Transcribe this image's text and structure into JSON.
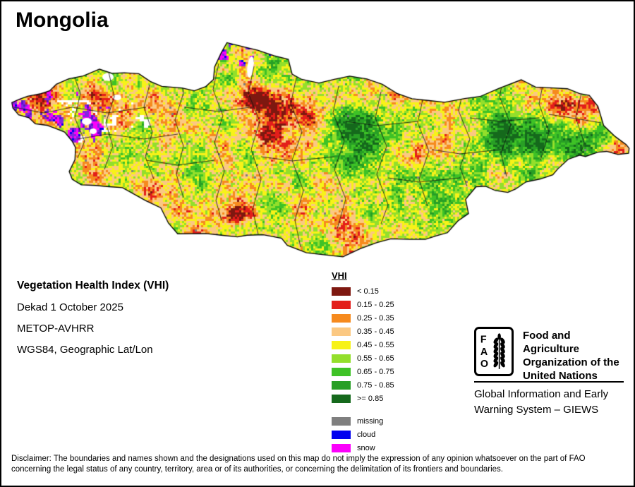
{
  "page": {
    "title": "Mongolia"
  },
  "info": {
    "heading": "Vegetation Health Index (VHI)",
    "dekad": "Dekad 1 October 2025",
    "sensor": "METOP-AVHRR",
    "projection": "WGS84, Geographic Lat/Lon"
  },
  "legend": {
    "title": "VHI",
    "classes": [
      {
        "label": "< 0.15",
        "color": "#7E1810"
      },
      {
        "label": "0.15 - 0.25",
        "color": "#E31E1A"
      },
      {
        "label": "0.25 - 0.35",
        "color": "#F68A1E"
      },
      {
        "label": "0.35 - 0.45",
        "color": "#FBC882"
      },
      {
        "label": "0.45 - 0.55",
        "color": "#F7F218"
      },
      {
        "label": "0.55 - 0.65",
        "color": "#93DF2B"
      },
      {
        "label": "0.65 - 0.75",
        "color": "#3EC226"
      },
      {
        "label": "0.75 - 0.85",
        "color": "#289F25"
      },
      {
        "label": ">= 0.85",
        "color": "#15691C"
      }
    ],
    "extras": [
      {
        "label": "missing",
        "color": "#7F7F7F"
      },
      {
        "label": "cloud",
        "color": "#0000EF"
      },
      {
        "label": "snow",
        "color": "#FB00FB"
      }
    ]
  },
  "fao": {
    "letters": [
      "F",
      "A",
      "O"
    ],
    "org_lines": [
      "Food and Agriculture",
      "Organization of the",
      "United Nations"
    ],
    "giews_lines": [
      "Global Information and Early",
      "Warning System – GIEWS"
    ]
  },
  "disclaimer": {
    "line1": "Disclaimer: The boundaries and names shown and the designations used on this map do not imply the expression of any opinion whatsoever on the part of FAO",
    "line2": "concerning the legal status of any country, territory, area or of its authorities, or concerning the delimitation of its frontiers and boundaries."
  },
  "map": {
    "snow_blend_colors": [
      "#8326DF",
      "#5A14C8"
    ],
    "lake_color": "#FFFFFF",
    "border_color": "#000000"
  }
}
